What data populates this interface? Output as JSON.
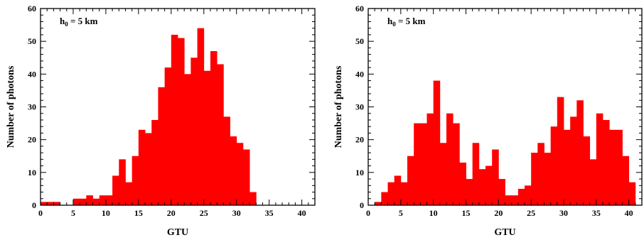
{
  "chart_data": [
    {
      "type": "bar",
      "xlabel": "GTU",
      "ylabel": "Number of photons",
      "xlim": [
        0,
        42
      ],
      "ylim": [
        0,
        60
      ],
      "xticks": [
        0,
        5,
        10,
        15,
        20,
        25,
        30,
        35,
        40
      ],
      "yticks": [
        0,
        10,
        20,
        30,
        40,
        50,
        60
      ],
      "annotation_main": "h",
      "annotation_sub": "0",
      "annotation_rest": " = 5 km",
      "bar_color": "#ff0000",
      "bin_width": 1,
      "x": [
        0,
        1,
        2,
        3,
        4,
        5,
        6,
        7,
        8,
        9,
        10,
        11,
        12,
        13,
        14,
        15,
        16,
        17,
        18,
        19,
        20,
        21,
        22,
        23,
        24,
        25,
        26,
        27,
        28,
        29,
        30,
        31,
        32,
        33,
        34,
        35,
        36,
        37,
        38,
        39,
        40,
        41
      ],
      "values": [
        1,
        1,
        1,
        0,
        0,
        2,
        2,
        3,
        2,
        3,
        3,
        9,
        14,
        7,
        15,
        23,
        22,
        26,
        36,
        42,
        52,
        51,
        40,
        45,
        54,
        41,
        47,
        43,
        27,
        21,
        19,
        17,
        4,
        0,
        0,
        0,
        0,
        0,
        0,
        0,
        0,
        0
      ]
    },
    {
      "type": "bar",
      "xlabel": "GTU",
      "ylabel": "Number of photons",
      "xlim": [
        0,
        42
      ],
      "ylim": [
        0,
        60
      ],
      "xticks": [
        0,
        5,
        10,
        15,
        20,
        25,
        30,
        35,
        40
      ],
      "yticks": [
        0,
        10,
        20,
        30,
        40,
        50,
        60
      ],
      "annotation_main": "h",
      "annotation_sub": "0",
      "annotation_rest": " = 5 km",
      "bar_color": "#ff0000",
      "bin_width": 1,
      "x": [
        0,
        1,
        2,
        3,
        4,
        5,
        6,
        7,
        8,
        9,
        10,
        11,
        12,
        13,
        14,
        15,
        16,
        17,
        18,
        19,
        20,
        21,
        22,
        23,
        24,
        25,
        26,
        27,
        28,
        29,
        30,
        31,
        32,
        33,
        34,
        35,
        36,
        37,
        38,
        39,
        40,
        41
      ],
      "values": [
        0,
        1,
        4,
        7,
        9,
        7,
        15,
        25,
        25,
        28,
        38,
        19,
        28,
        25,
        13,
        8,
        19,
        11,
        12,
        17,
        8,
        3,
        3,
        5,
        6,
        16,
        19,
        16,
        24,
        33,
        23,
        27,
        32,
        21,
        14,
        28,
        26,
        23,
        23,
        15,
        7,
        0
      ]
    }
  ]
}
